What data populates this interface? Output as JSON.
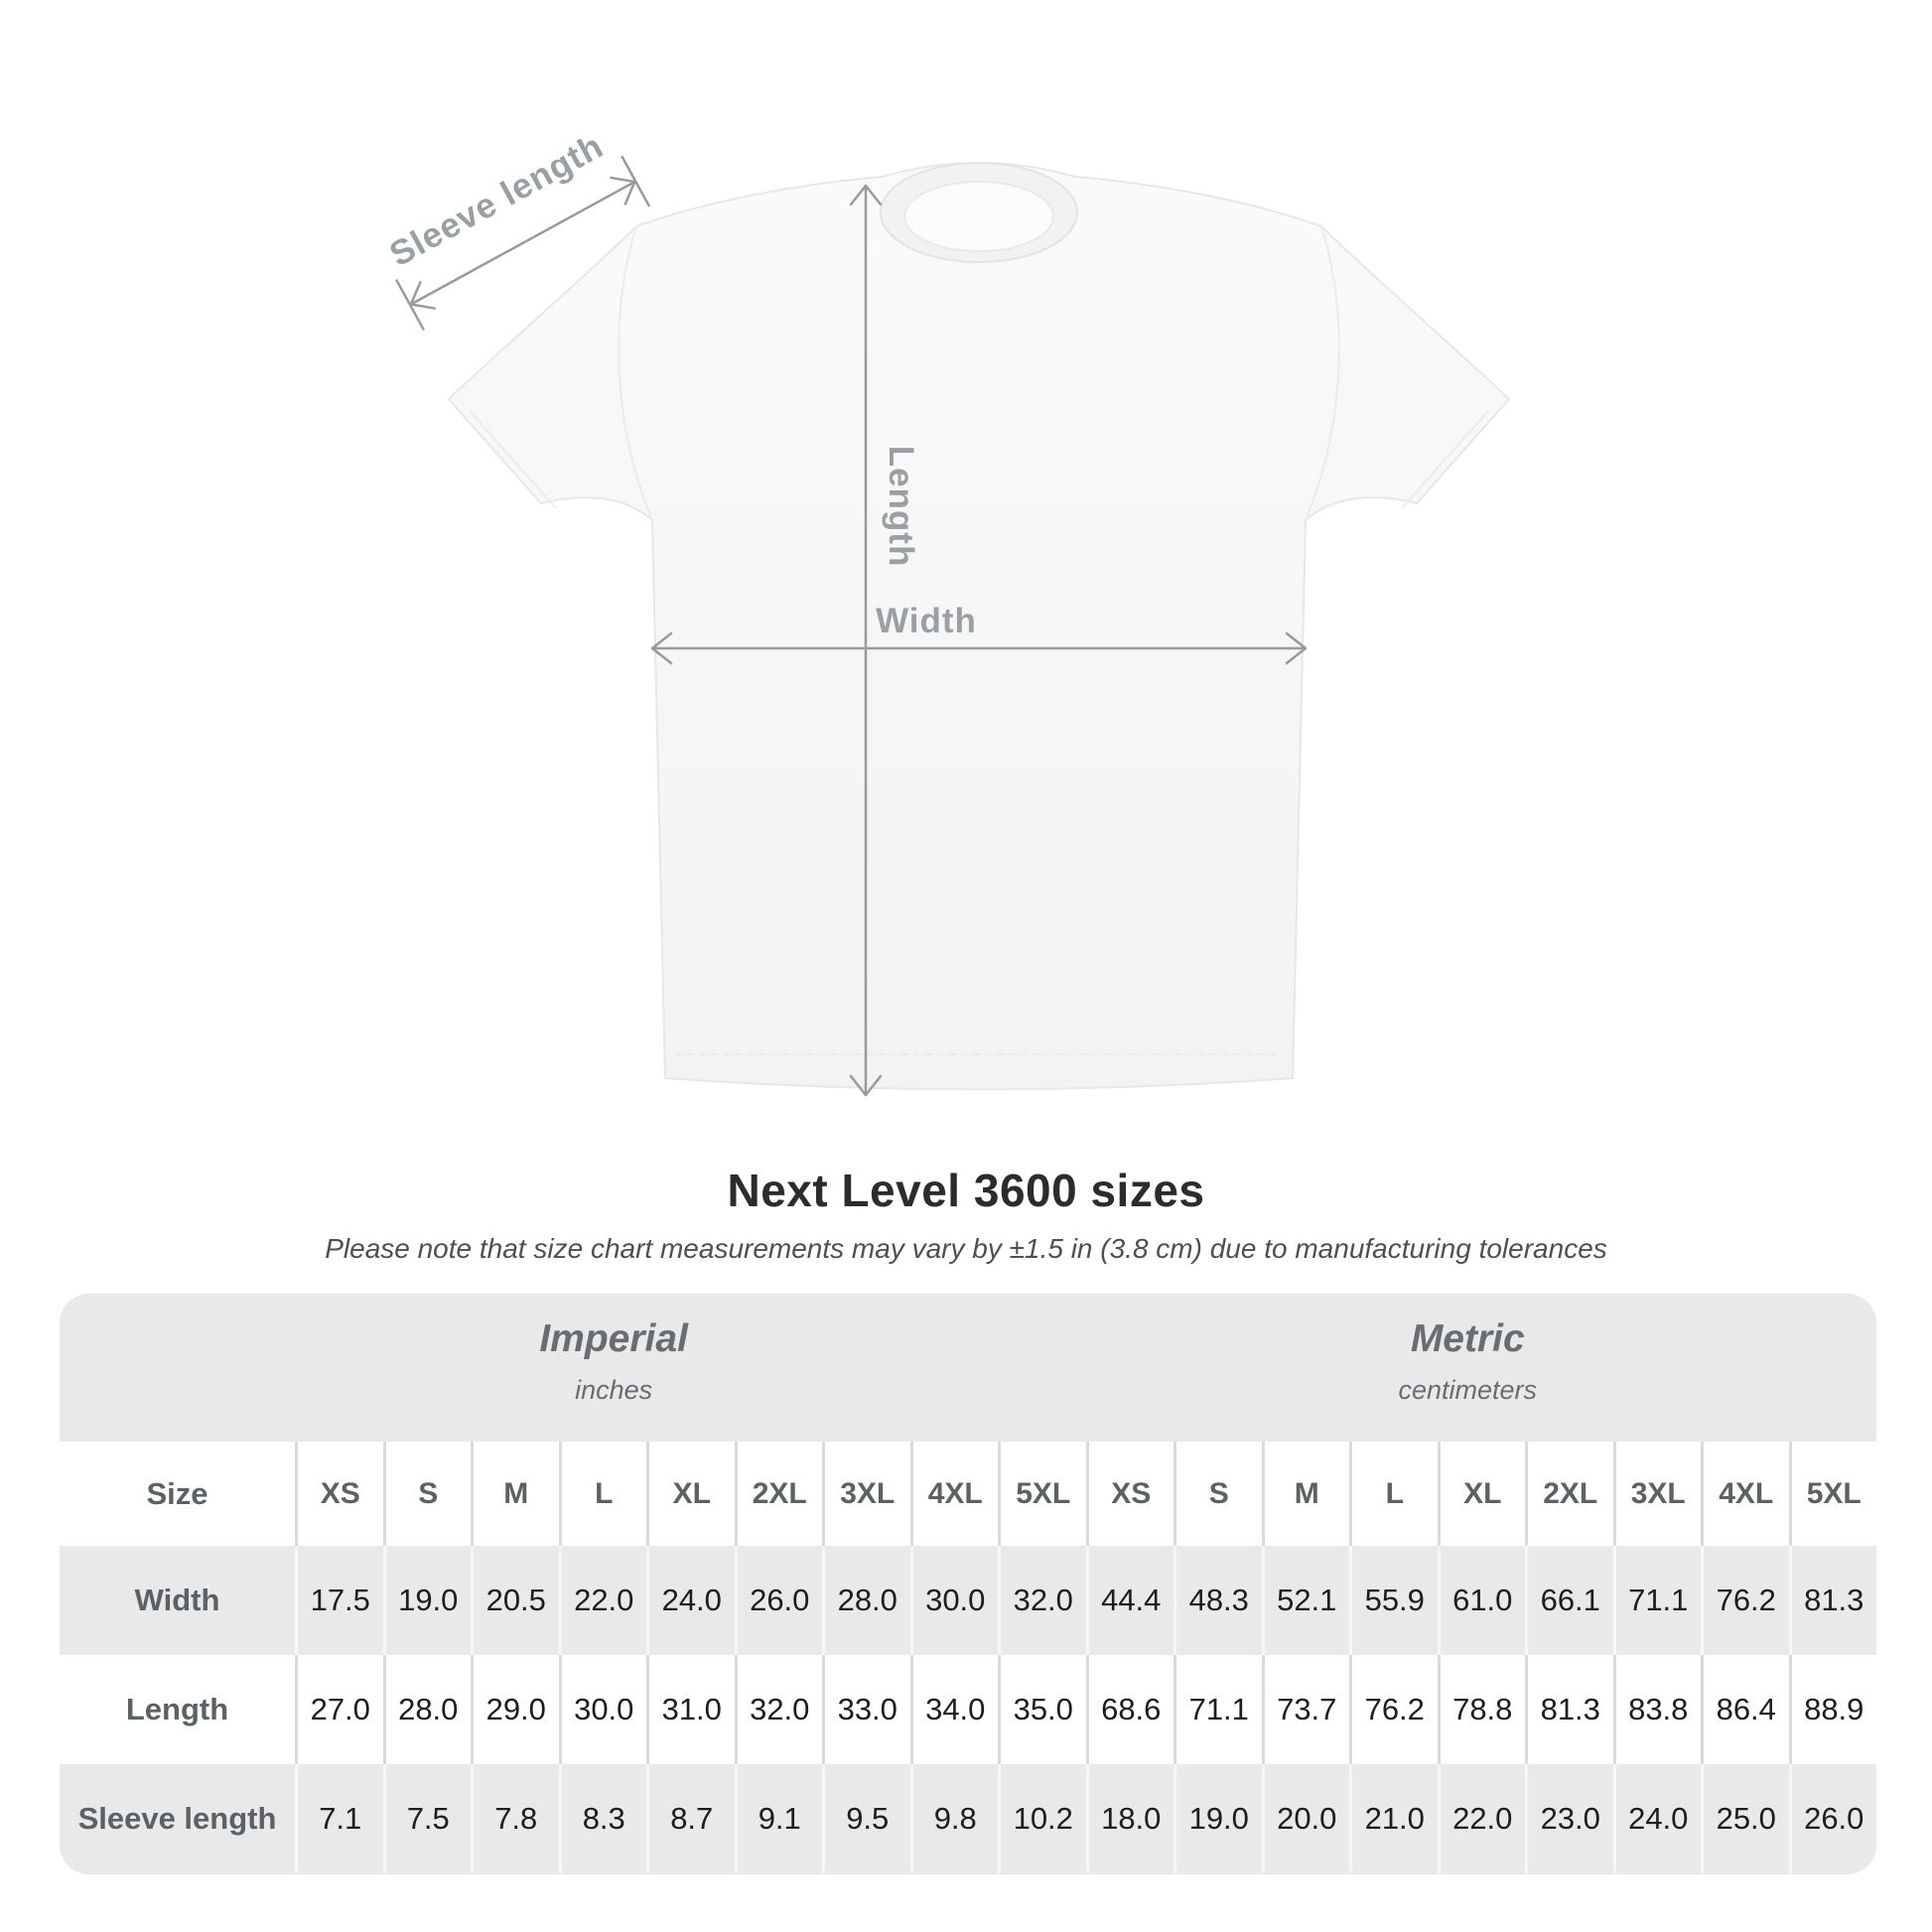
{
  "diagram": {
    "sleeve_length_label": "Sleeve length",
    "length_label": "Length",
    "width_label": "Width"
  },
  "title": "Next Level 3600 sizes",
  "subtitle": "Please note that size chart measurements may vary by ±1.5 in (3.8 cm) due to manufacturing tolerances",
  "table": {
    "size_header": "Size",
    "size_columns": [
      "XS",
      "S",
      "M",
      "L",
      "XL",
      "2XL",
      "3XL",
      "4XL",
      "5XL"
    ],
    "sections": [
      {
        "name": "Imperial",
        "unit": "inches"
      },
      {
        "name": "Metric",
        "unit": "centimeters"
      }
    ],
    "rows": [
      {
        "label": "Width",
        "imperial": [
          "17.5",
          "19.0",
          "20.5",
          "22.0",
          "24.0",
          "26.0",
          "28.0",
          "30.0",
          "32.0"
        ],
        "metric": [
          "44.4",
          "48.3",
          "52.1",
          "55.9",
          "61.0",
          "66.1",
          "71.1",
          "76.2",
          "81.3"
        ]
      },
      {
        "label": "Length",
        "imperial": [
          "27.0",
          "28.0",
          "29.0",
          "30.0",
          "31.0",
          "32.0",
          "33.0",
          "34.0",
          "35.0"
        ],
        "metric": [
          "68.6",
          "71.1",
          "73.7",
          "76.2",
          "78.8",
          "81.3",
          "83.8",
          "86.4",
          "88.9"
        ]
      },
      {
        "label": "Sleeve length",
        "imperial": [
          "7.1",
          "7.5",
          "7.8",
          "8.3",
          "8.7",
          "9.1",
          "9.5",
          "9.8",
          "10.2"
        ],
        "metric": [
          "18.0",
          "19.0",
          "20.0",
          "21.0",
          "22.0",
          "23.0",
          "24.0",
          "25.0",
          "26.0"
        ]
      }
    ]
  },
  "colors": {
    "annotation_gray": "#9a9a9a",
    "table_background": "#e9e9e9",
    "label_text": "#5b6165",
    "value_text": "#1d1d1f"
  }
}
